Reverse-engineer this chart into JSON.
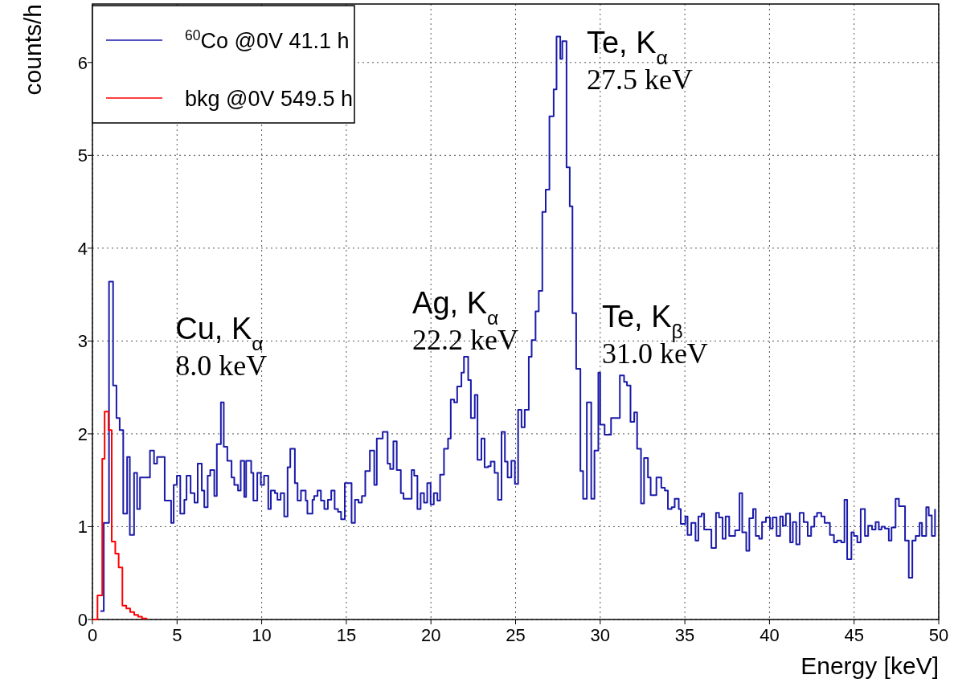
{
  "chart_data": {
    "type": "step",
    "xlabel": "Energy [keV]",
    "ylabel": "counts/h",
    "xlim": [
      0,
      50
    ],
    "ylim": [
      0,
      6.63
    ],
    "xticks": [
      0,
      5,
      10,
      15,
      20,
      25,
      30,
      35,
      40,
      45,
      50
    ],
    "yticks": [
      0,
      1,
      2,
      3,
      4,
      5,
      6
    ],
    "grid": true,
    "legend": "top left",
    "line_style": "solid",
    "annotations": [
      "Cu, K$_{α}$\n8.0 keV",
      "Ag, K$_{α}$\n22.2 keV",
      "Te, K$_{α}$\n27.5 keV",
      "Te, K$_{β}$\n31.0 keV"
    ],
    "series": [
      {
        "name": "$^{60}$Co @0V 41.1 h",
        "color": "#1a1aaa",
        "x": [
          0.47,
          0.67,
          0.98,
          1.22,
          1.42,
          1.61,
          1.82,
          2.05,
          2.21,
          2.46,
          2.64,
          2.81,
          3.4,
          3.64,
          3.82,
          4.27,
          4.65,
          4.8,
          4.99,
          5.19,
          5.43,
          5.56,
          5.8,
          6.03,
          6.22,
          6.46,
          6.61,
          6.81,
          6.96,
          7.2,
          7.35,
          7.59,
          7.76,
          7.97,
          8.22,
          8.38,
          8.6,
          8.76,
          8.97,
          9.08,
          9.38,
          9.51,
          9.74,
          9.95,
          10.14,
          10.39,
          10.54,
          10.78,
          10.93,
          11.12,
          11.33,
          11.53,
          11.69,
          11.96,
          12.12,
          12.32,
          12.6,
          12.7,
          13.0,
          13.1,
          13.3,
          13.5,
          13.7,
          13.91,
          14.11,
          14.31,
          14.51,
          14.69,
          14.91,
          15.31,
          15.51,
          15.72,
          15.92,
          16.12,
          16.39,
          16.65,
          16.8,
          17.15,
          17.44,
          17.59,
          17.78,
          17.98,
          18.22,
          18.38,
          18.86,
          19.01,
          19.2,
          19.39,
          19.59,
          19.78,
          19.98,
          20.17,
          20.38,
          20.54,
          20.77,
          21.01,
          21.17,
          21.37,
          21.55,
          21.8,
          21.95,
          22.2,
          22.36,
          22.59,
          22.75,
          22.98,
          23.17,
          23.38,
          23.53,
          23.76,
          23.96,
          24.17,
          24.37,
          24.53,
          24.75,
          24.96,
          25.15,
          25.35,
          25.54,
          25.78,
          25.95,
          26.18,
          26.37,
          26.58,
          26.78,
          27.0,
          27.25,
          27.42,
          27.64,
          27.76,
          28.01,
          28.2,
          28.36,
          28.58,
          28.83,
          28.99,
          29.21,
          29.47,
          29.66,
          29.89,
          30.0,
          30.26,
          30.64,
          31.16,
          31.41,
          31.58,
          31.79,
          32.01,
          32.18,
          32.41,
          32.59,
          32.82,
          32.98,
          33.32,
          33.61,
          33.82,
          34.0,
          34.22,
          34.4,
          34.64,
          34.76,
          35.03,
          35.16,
          35.38,
          35.63,
          35.8,
          35.99,
          36.14,
          36.57,
          36.84,
          37.02,
          37.23,
          37.41,
          37.62,
          37.97,
          38.23,
          38.39,
          38.63,
          38.81,
          39.03,
          39.19,
          39.39,
          39.56,
          39.79,
          40.03,
          40.19,
          40.42,
          40.63,
          40.79,
          40.97,
          41.22,
          41.38,
          41.58,
          41.78,
          42.02,
          42.26,
          42.46,
          42.65,
          42.81,
          43.06,
          43.26,
          43.57,
          43.81,
          43.99,
          44.24,
          44.43,
          44.59,
          44.84,
          44.99,
          45.19,
          45.39,
          45.64,
          45.83,
          46.06,
          46.27,
          46.46,
          46.62,
          46.82,
          47.05,
          47.21,
          47.45,
          47.65,
          48.01,
          48.23,
          48.44,
          48.64,
          48.87,
          49.01,
          49.26,
          49.41,
          49.59,
          49.78
        ],
        "values": [
          0.09,
          1.04,
          3.64,
          2.52,
          2.17,
          2.04,
          1.14,
          1.75,
          0.91,
          1.58,
          1.19,
          1.53,
          1.82,
          1.68,
          1.75,
          1.28,
          1.04,
          1.45,
          1.55,
          1.14,
          1.29,
          1.55,
          1.36,
          1.26,
          1.68,
          1.39,
          1.21,
          1.55,
          1.61,
          1.33,
          1.89,
          2.34,
          1.86,
          1.71,
          1.53,
          1.45,
          1.39,
          1.71,
          1.32,
          1.71,
          1.58,
          1.28,
          1.58,
          1.45,
          1.55,
          1.19,
          1.39,
          1.36,
          1.29,
          1.36,
          1.11,
          1.64,
          1.84,
          1.47,
          1.28,
          1.39,
          1.28,
          1.14,
          1.29,
          1.33,
          1.39,
          1.28,
          1.19,
          1.29,
          1.39,
          1.19,
          1.16,
          1.08,
          1.47,
          1.04,
          1.29,
          1.26,
          1.33,
          1.6,
          1.82,
          1.45,
          1.95,
          2.02,
          1.68,
          1.62,
          1.92,
          1.61,
          1.36,
          1.3,
          1.61,
          1.55,
          1.19,
          1.36,
          1.26,
          1.47,
          1.24,
          1.36,
          1.28,
          1.56,
          1.84,
          1.95,
          2.37,
          2.34,
          2.51,
          2.66,
          2.83,
          2.58,
          2.17,
          2.42,
          1.72,
          1.95,
          1.64,
          1.65,
          1.7,
          1.58,
          1.29,
          2.02,
          1.7,
          1.53,
          1.71,
          1.46,
          2.26,
          2.07,
          2.26,
          2.83,
          3.01,
          3.32,
          3.54,
          4.39,
          4.63,
          5.42,
          5.71,
          6.28,
          6.04,
          6.23,
          4.87,
          4.45,
          3.3,
          2.7,
          1.6,
          1.3,
          2.34,
          1.3,
          1.82,
          2.66,
          2.1,
          1.99,
          2.17,
          2.63,
          2.56,
          2.52,
          2.13,
          2.23,
          1.84,
          1.25,
          1.74,
          1.53,
          1.34,
          1.53,
          1.42,
          1.39,
          1.19,
          1.21,
          1.3,
          1.19,
          1.03,
          1.11,
          0.91,
          1.04,
          0.85,
          1.11,
          1.14,
          0.97,
          0.77,
          1.15,
          1.1,
          0.87,
          1.11,
          0.9,
          0.96,
          1.36,
          0.94,
          0.74,
          1.09,
          1.19,
          0.9,
          0.87,
          1.05,
          1.1,
          0.98,
          1.1,
          0.9,
          1.11,
          1.01,
          1.14,
          0.83,
          1.05,
          0.81,
          1.15,
          1.05,
          0.9,
          1.0,
          1.11,
          1.15,
          1.11,
          1.04,
          0.91,
          0.83,
          0.85,
          0.83,
          1.29,
          0.65,
          0.94,
          0.9,
          0.83,
          1.19,
          0.9,
          1.01,
          0.97,
          1.05,
          0.97,
          1.0,
          0.98,
          0.85,
          0.99,
          1.3,
          1.22,
          0.85,
          0.45,
          0.85,
          0.9,
          1.04,
          0.9,
          1.21,
          1.12,
          0.9,
          1.19
        ]
      },
      {
        "name": "bkg @0V 549.5 h",
        "color": "#ff0000",
        "x": [
          0,
          0.3,
          0.58,
          0.72,
          0.95,
          1.14,
          1.35,
          1.55,
          1.77,
          2.0,
          2.23,
          2.47,
          2.7,
          2.93,
          3.2
        ],
        "values": [
          0,
          0.26,
          1.73,
          2.24,
          2.04,
          0.84,
          0.71,
          0.56,
          0.15,
          0.12,
          0.08,
          0.05,
          0.03,
          0.01,
          0
        ]
      }
    ]
  }
}
